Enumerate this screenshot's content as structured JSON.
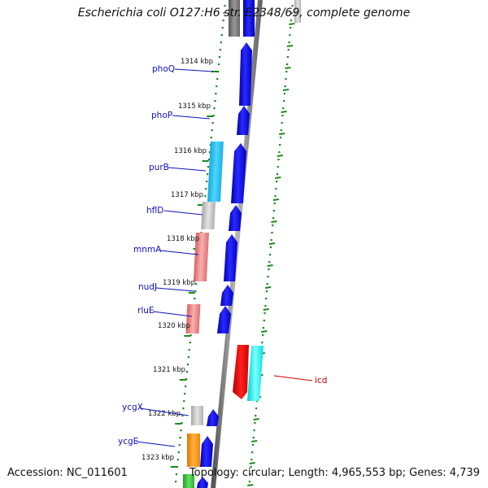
{
  "title": "Escherichia coli O127:H6 str. E2348/69, complete genome",
  "accession": "Accession: NC_011601",
  "summary": "Topology: circular; Length: 4,965,553 bp; Genes: 4,739",
  "colors": {
    "forward_cds": "#0000ee",
    "ruler_dots": "#1a8a1a",
    "gene_label": "#1010c0",
    "highlight_label": "#cc0000",
    "backbone": "#888888"
  },
  "kbp_ticks": [
    "1314 kbp",
    "1315 kbp",
    "1316 kbp",
    "1317 kbp",
    "1318 kbp",
    "1319 kbp",
    "1320 kbp",
    "1321 kbp",
    "1322 kbp",
    "1323 kbp"
  ],
  "gene_labels": [
    {
      "name": "phoQ",
      "color": "blue"
    },
    {
      "name": "phoP",
      "color": "blue"
    },
    {
      "name": "purB",
      "color": "blue"
    },
    {
      "name": "hflD",
      "color": "blue"
    },
    {
      "name": "mnmA",
      "color": "blue"
    },
    {
      "name": "nudJ",
      "color": "blue"
    },
    {
      "name": "rluE",
      "color": "blue"
    },
    {
      "name": "icd",
      "color": "red"
    },
    {
      "name": "ycgX",
      "color": "blue"
    },
    {
      "name": "ycgE",
      "color": "blue"
    }
  ]
}
